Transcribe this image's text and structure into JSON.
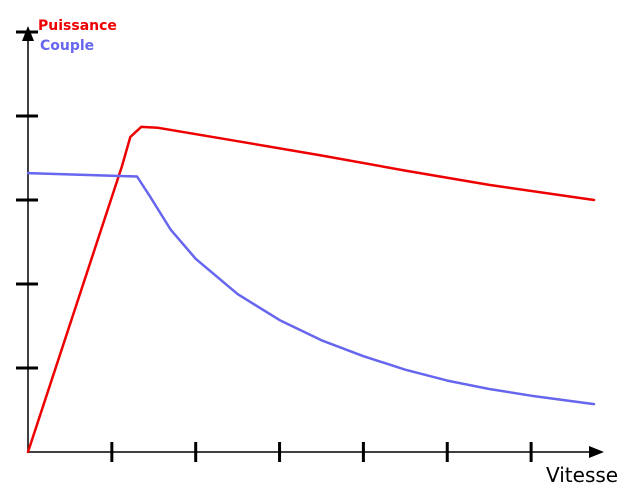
{
  "chart_data": {
    "type": "line",
    "title": "",
    "xlabel": "Vitesse",
    "ylabel": "",
    "xlim": [
      0,
      6.75
    ],
    "ylim": [
      0,
      5
    ],
    "grid": false,
    "legend_position": "top-left",
    "x_ticks": [
      1,
      2,
      3,
      4,
      5,
      6
    ],
    "y_ticks": [
      1,
      2,
      3,
      4,
      5
    ],
    "series": [
      {
        "name": "Puissance",
        "color": "#ee0000",
        "points": [
          [
            0,
            0
          ],
          [
            1.12,
            3.4
          ],
          [
            1.22,
            3.75
          ],
          [
            1.35,
            3.87
          ],
          [
            1.55,
            3.86
          ],
          [
            2.5,
            3.7
          ],
          [
            3.5,
            3.53
          ],
          [
            4.5,
            3.35
          ],
          [
            5.5,
            3.18
          ],
          [
            6.75,
            3.0
          ]
        ]
      },
      {
        "name": "Couple",
        "color": "#6666ee",
        "points": [
          [
            0,
            3.32
          ],
          [
            1.3,
            3.28
          ],
          [
            1.45,
            3.05
          ],
          [
            1.7,
            2.65
          ],
          [
            2.0,
            2.3
          ],
          [
            2.5,
            1.88
          ],
          [
            3.0,
            1.57
          ],
          [
            3.5,
            1.33
          ],
          [
            4.0,
            1.14
          ],
          [
            4.5,
            0.98
          ],
          [
            5.0,
            0.85
          ],
          [
            5.5,
            0.75
          ],
          [
            6.0,
            0.67
          ],
          [
            6.75,
            0.57
          ]
        ]
      }
    ]
  }
}
